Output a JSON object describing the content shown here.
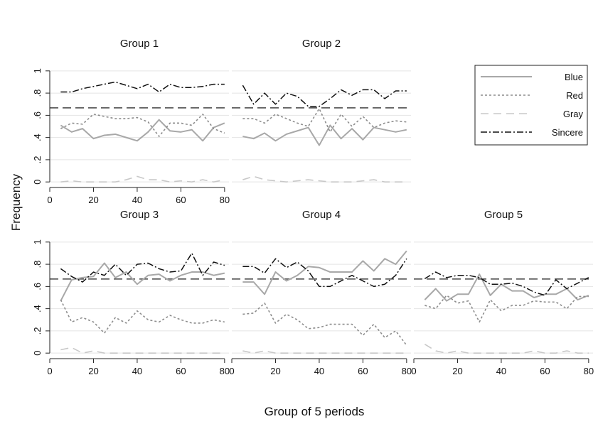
{
  "chart_data": {
    "type": "line",
    "ylabel": "Frequency",
    "xlabel": "Group of  5 periods",
    "xlim": [
      0,
      82
    ],
    "ylim": [
      -0.05,
      1.05
    ],
    "x_ticks": [
      0,
      20,
      40,
      60,
      80
    ],
    "x_tick_labels": [
      "0",
      "20",
      "40",
      "60",
      "80"
    ],
    "y_ticks": [
      0,
      0.2,
      0.4,
      0.6,
      0.8,
      1
    ],
    "y_tick_labels": [
      "0",
      ".2",
      ".4",
      ".6",
      ".8",
      "1"
    ],
    "reference_line": 0.667,
    "grid": true,
    "legend_position": "top-right",
    "legend": [
      {
        "name": "Blue",
        "color": "#a8a8a8",
        "style": "solid"
      },
      {
        "name": "Red",
        "color": "#8c8c8c",
        "style": "dotted"
      },
      {
        "name": "Gray",
        "color": "#c8c8c8",
        "style": "dashed"
      },
      {
        "name": "Sincere",
        "color": "#111111",
        "style": "dashdot"
      }
    ],
    "x": [
      5,
      10,
      15,
      20,
      25,
      30,
      35,
      40,
      45,
      50,
      55,
      60,
      65,
      70,
      75,
      80
    ],
    "panels": [
      {
        "title": "Group  1",
        "series": [
          {
            "name": "Blue",
            "values": [
              0.51,
              0.45,
              0.48,
              0.39,
              0.42,
              0.43,
              0.4,
              0.37,
              0.45,
              0.56,
              0.46,
              0.45,
              0.47,
              0.37,
              0.49,
              0.53
            ]
          },
          {
            "name": "Red",
            "values": [
              0.48,
              0.53,
              0.52,
              0.61,
              0.59,
              0.57,
              0.57,
              0.58,
              0.54,
              0.41,
              0.53,
              0.53,
              0.51,
              0.61,
              0.48,
              0.44
            ]
          },
          {
            "name": "Gray",
            "values": [
              0.0,
              0.01,
              0.0,
              0.0,
              0.0,
              0.0,
              0.02,
              0.05,
              0.02,
              0.02,
              0.0,
              0.01,
              0.0,
              0.02,
              0.0,
              0.02
            ]
          },
          {
            "name": "Sincere",
            "values": [
              0.81,
              0.81,
              0.84,
              0.86,
              0.88,
              0.9,
              0.87,
              0.84,
              0.88,
              0.81,
              0.88,
              0.85,
              0.85,
              0.86,
              0.88,
              0.88
            ]
          }
        ]
      },
      {
        "title": "Group  2",
        "series": [
          {
            "name": "Blue",
            "values": [
              0.41,
              0.39,
              0.44,
              0.37,
              0.43,
              0.46,
              0.49,
              0.33,
              0.51,
              0.39,
              0.48,
              0.38,
              0.49,
              0.47,
              0.45,
              0.47
            ]
          },
          {
            "name": "Red",
            "values": [
              0.57,
              0.57,
              0.53,
              0.61,
              0.57,
              0.53,
              0.5,
              0.66,
              0.45,
              0.61,
              0.5,
              0.59,
              0.49,
              0.53,
              0.55,
              0.54
            ]
          },
          {
            "name": "Gray",
            "values": [
              0.02,
              0.05,
              0.02,
              0.01,
              0.0,
              0.01,
              0.02,
              0.01,
              0.0,
              0.0,
              0.0,
              0.01,
              0.02,
              0.0,
              0.0,
              0.0
            ]
          },
          {
            "name": "Sincere",
            "values": [
              0.87,
              0.7,
              0.8,
              0.7,
              0.8,
              0.77,
              0.68,
              0.68,
              0.75,
              0.83,
              0.78,
              0.83,
              0.83,
              0.75,
              0.82,
              0.82
            ]
          }
        ]
      },
      {
        "title": "Group  3",
        "series": [
          {
            "name": "Blue",
            "values": [
              0.47,
              0.66,
              0.68,
              0.69,
              0.81,
              0.68,
              0.73,
              0.62,
              0.7,
              0.71,
              0.65,
              0.7,
              0.73,
              0.73,
              0.7,
              0.72
            ]
          },
          {
            "name": "Red",
            "values": [
              0.48,
              0.28,
              0.32,
              0.28,
              0.18,
              0.32,
              0.27,
              0.38,
              0.3,
              0.28,
              0.34,
              0.3,
              0.27,
              0.27,
              0.3,
              0.28
            ]
          },
          {
            "name": "Gray",
            "values": [
              0.03,
              0.05,
              0.0,
              0.02,
              0.0,
              0.0,
              0.0,
              0.0,
              0.0,
              0.0,
              0.0,
              0.0,
              0.0,
              0.0,
              0.0,
              0.0
            ]
          },
          {
            "name": "Sincere",
            "values": [
              0.76,
              0.69,
              0.64,
              0.73,
              0.7,
              0.8,
              0.7,
              0.8,
              0.81,
              0.76,
              0.73,
              0.74,
              0.9,
              0.7,
              0.82,
              0.79
            ]
          }
        ]
      },
      {
        "title": "Group  4",
        "series": [
          {
            "name": "Blue",
            "values": [
              0.64,
              0.64,
              0.53,
              0.73,
              0.65,
              0.7,
              0.78,
              0.77,
              0.73,
              0.73,
              0.73,
              0.83,
              0.74,
              0.85,
              0.8,
              0.92
            ]
          },
          {
            "name": "Red",
            "values": [
              0.35,
              0.36,
              0.45,
              0.27,
              0.35,
              0.3,
              0.22,
              0.23,
              0.26,
              0.26,
              0.26,
              0.16,
              0.26,
              0.14,
              0.2,
              0.07
            ]
          },
          {
            "name": "Gray",
            "values": [
              0.02,
              0.0,
              0.02,
              0.0,
              0.0,
              0.0,
              0.0,
              0.0,
              0.0,
              0.0,
              0.0,
              0.0,
              0.0,
              0.0,
              0.0,
              0.0
            ]
          },
          {
            "name": "Sincere",
            "values": [
              0.78,
              0.78,
              0.72,
              0.85,
              0.77,
              0.82,
              0.74,
              0.6,
              0.6,
              0.65,
              0.7,
              0.65,
              0.6,
              0.62,
              0.7,
              0.85
            ]
          }
        ]
      },
      {
        "title": "Group  5",
        "series": [
          {
            "name": "Blue",
            "values": [
              0.48,
              0.58,
              0.47,
              0.53,
              0.53,
              0.71,
              0.52,
              0.62,
              0.56,
              0.56,
              0.5,
              0.53,
              0.53,
              0.58,
              0.48,
              0.52
            ]
          },
          {
            "name": "Red",
            "values": [
              0.43,
              0.4,
              0.52,
              0.45,
              0.47,
              0.28,
              0.48,
              0.38,
              0.43,
              0.43,
              0.47,
              0.46,
              0.46,
              0.4,
              0.51,
              0.51
            ]
          },
          {
            "name": "Gray",
            "values": [
              0.08,
              0.02,
              0.0,
              0.02,
              0.0,
              0.0,
              0.0,
              0.0,
              0.0,
              0.0,
              0.02,
              0.0,
              0.0,
              0.02,
              0.0,
              0.0
            ]
          },
          {
            "name": "Sincere",
            "values": [
              0.67,
              0.73,
              0.68,
              0.7,
              0.7,
              0.68,
              0.62,
              0.62,
              0.63,
              0.6,
              0.55,
              0.52,
              0.66,
              0.58,
              0.63,
              0.68
            ]
          }
        ]
      }
    ]
  }
}
